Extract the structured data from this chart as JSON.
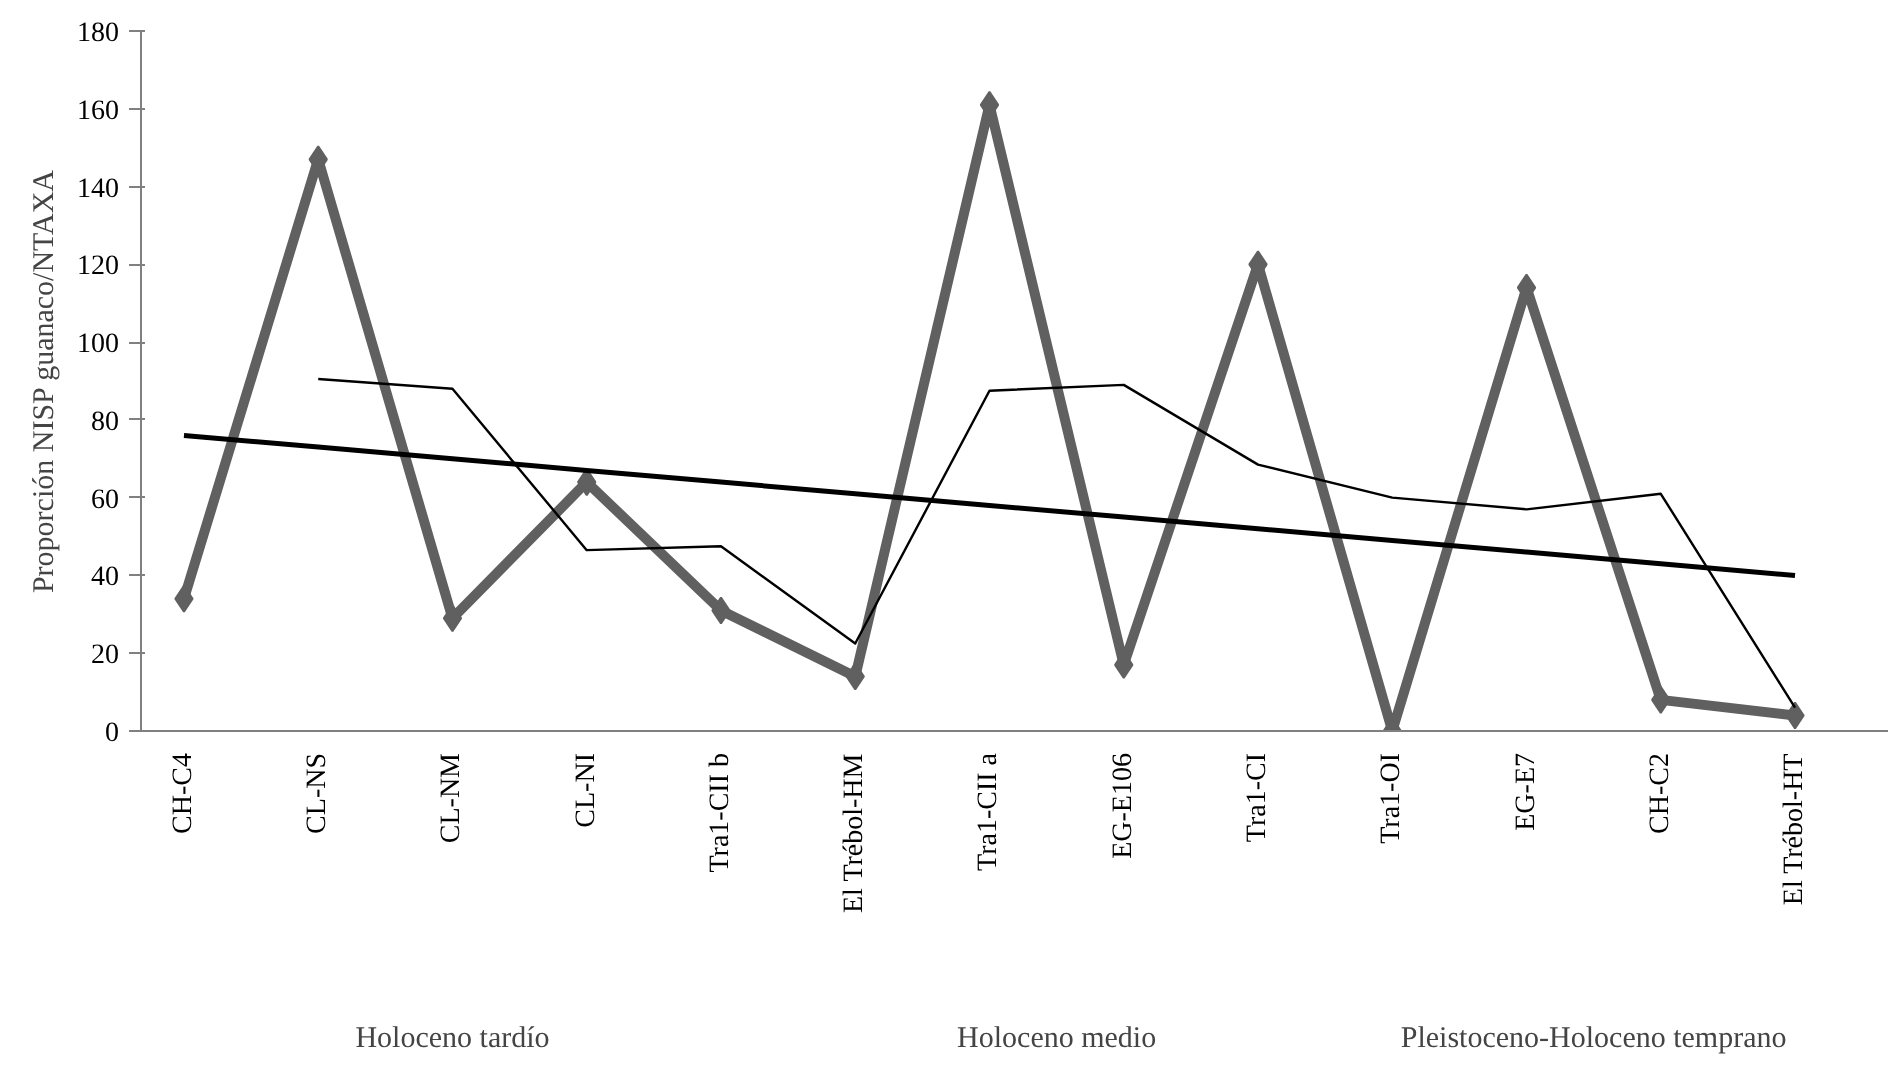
{
  "chart_data": {
    "type": "line",
    "ylabel": "Proporción NISP guanaco/NTAXA",
    "categories": [
      "CH-C4",
      "CL-NS",
      "CL-NM",
      "CL-NI",
      "Tra1-CII b",
      "El Trébol-HM",
      "Tra1-CII a",
      "EG-E106",
      "Tra1-CI",
      "Tra1-OI",
      "EG-E7",
      "CH-C2",
      "El Trébol-HT"
    ],
    "series": [
      {
        "color": "#606060",
        "marker": "diamond",
        "values": [
          34,
          147,
          29,
          64,
          31,
          14,
          161,
          17,
          120,
          0,
          114,
          8,
          4
        ]
      },
      {
        "color": "#000000",
        "marker": "none",
        "values": [
          null,
          90.5,
          88,
          46.5,
          47.5,
          22.5,
          87.5,
          89,
          68.5,
          60,
          57,
          61,
          6
        ]
      },
      {
        "color": "#000000",
        "marker": "none",
        "values": [
          76,
          73,
          70,
          67,
          64,
          61,
          58,
          55,
          52,
          49,
          46,
          43,
          40
        ]
      }
    ],
    "ylim": [
      0,
      180
    ],
    "yticks": [
      0,
      20,
      40,
      60,
      80,
      100,
      120,
      140,
      160,
      180
    ],
    "grid": false,
    "annotations": [
      "Holoceno tardío",
      "Holoceno medio",
      "Pleistoceno-Holoceno temprano"
    ]
  }
}
